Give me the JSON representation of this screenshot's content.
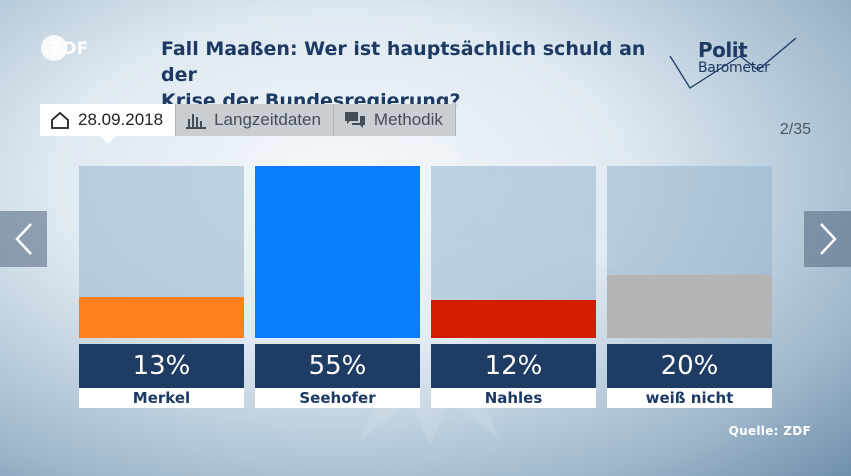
{
  "header": {
    "title_line1": "Fall Maaßen: Wer ist hauptsächlich schuld an der",
    "title_line2": "Krise der Bundesregierung?",
    "logo_text": "ZDF",
    "brand_line1": "Polit",
    "brand_line2": "Barometer"
  },
  "tabs": [
    {
      "label": "28.09.2018",
      "icon": "home-icon",
      "active": true
    },
    {
      "label": "Langzeitdaten",
      "icon": "bar-chart-icon",
      "active": false
    },
    {
      "label": "Methodik",
      "icon": "chat-icon",
      "active": false
    }
  ],
  "counter": "2/35",
  "source": "Quelle: ZDF",
  "nav": {
    "prev_icon": "chevron-left-icon",
    "next_icon": "chevron-right-icon"
  },
  "colors": {
    "Merkel": "#ff7f1e",
    "Seehofer": "#0a7dff",
    "Nahles": "#d21e00",
    "weiß nicht": "#b4b4b4"
  },
  "chart_data": {
    "type": "bar",
    "categories": [
      "Merkel",
      "Seehofer",
      "Nahles",
      "weiß nicht"
    ],
    "values": [
      13,
      55,
      12,
      20
    ],
    "value_labels": [
      "13%",
      "55%",
      "12%",
      "20%"
    ],
    "ylim": [
      0,
      55
    ],
    "grid": false
  }
}
